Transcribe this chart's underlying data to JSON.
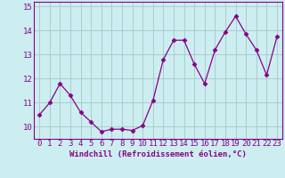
{
  "x": [
    0,
    1,
    2,
    3,
    4,
    5,
    6,
    7,
    8,
    9,
    10,
    11,
    12,
    13,
    14,
    15,
    16,
    17,
    18,
    19,
    20,
    21,
    22,
    23
  ],
  "y": [
    10.5,
    11.0,
    11.8,
    11.3,
    10.6,
    10.2,
    9.8,
    9.9,
    9.9,
    9.85,
    10.05,
    11.1,
    12.8,
    13.6,
    13.6,
    12.6,
    11.8,
    13.2,
    13.95,
    14.6,
    13.85,
    13.2,
    12.15,
    13.75
  ],
  "line_color": "#880088",
  "marker": "D",
  "marker_size": 2.5,
  "bg_color": "#cceef0",
  "grid_color": "#aacccc",
  "axis_color": "#880088",
  "xlabel": "Windchill (Refroidissement éolien,°C)",
  "ylim": [
    9.5,
    15.2
  ],
  "xlim": [
    -0.5,
    23.5
  ],
  "yticks": [
    10,
    11,
    12,
    13,
    14,
    15
  ],
  "xticks": [
    0,
    1,
    2,
    3,
    4,
    5,
    6,
    7,
    8,
    9,
    10,
    11,
    12,
    13,
    14,
    15,
    16,
    17,
    18,
    19,
    20,
    21,
    22,
    23
  ],
  "xtick_labels": [
    "0",
    "1",
    "2",
    "3",
    "4",
    "5",
    "6",
    "7",
    "8",
    "9",
    "10",
    "11",
    "12",
    "13",
    "14",
    "15",
    "16",
    "17",
    "18",
    "19",
    "20",
    "21",
    "22",
    "23"
  ],
  "label_fontsize": 6.5,
  "tick_fontsize": 6.5
}
